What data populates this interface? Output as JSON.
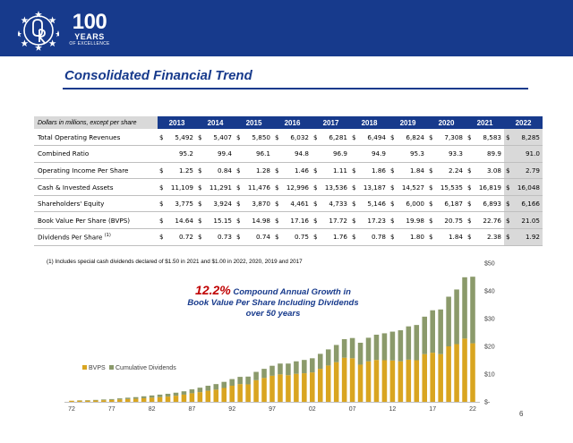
{
  "header": {
    "logo_number": "100",
    "logo_years": "YEARS",
    "logo_tagline": "OF EXCELLENCE",
    "band_color": "#173a8c"
  },
  "page_title": "Consolidated Financial Trend",
  "table": {
    "corner_label": "Dollars in millions, except per share",
    "years": [
      "2013",
      "2014",
      "2015",
      "2016",
      "2017",
      "2018",
      "2019",
      "2020",
      "2021",
      "2022"
    ],
    "rows": [
      {
        "label": "Total Operating Revenues",
        "note": "",
        "dollar": true,
        "values": [
          "5,492",
          "5,407",
          "5,850",
          "6,032",
          "6,281",
          "6,494",
          "6,824",
          "7,308",
          "8,583",
          "8,285"
        ]
      },
      {
        "label": "Combined Ratio",
        "note": "",
        "dollar": false,
        "values": [
          "95.2",
          "99.4",
          "96.1",
          "94.8",
          "96.9",
          "94.9",
          "95.3",
          "93.3",
          "89.9",
          "91.0"
        ]
      },
      {
        "label": "Operating Income Per Share",
        "note": "",
        "dollar": true,
        "values": [
          "1.25",
          "0.84",
          "1.28",
          "1.46",
          "1.11",
          "1.86",
          "1.84",
          "2.24",
          "3.08",
          "2.79"
        ]
      },
      {
        "label": "Cash & Invested Assets",
        "note": "",
        "dollar": true,
        "values": [
          "11,109",
          "11,291",
          "11,476",
          "12,996",
          "13,536",
          "13,187",
          "14,527",
          "15,535",
          "16,819",
          "16,048"
        ]
      },
      {
        "label": "Shareholders' Equity",
        "note": "",
        "dollar": true,
        "values": [
          "3,775",
          "3,924",
          "3,870",
          "4,461",
          "4,733",
          "5,146",
          "6,000",
          "6,187",
          "6,893",
          "6,166"
        ]
      },
      {
        "label": "Book Value Per Share (BVPS)",
        "note": "",
        "dollar": true,
        "values": [
          "14.64",
          "15.15",
          "14.98",
          "17.16",
          "17.72",
          "17.23",
          "19.98",
          "20.75",
          "22.76",
          "21.05"
        ]
      },
      {
        "label": "Dividends Per Share",
        "note": "(1)",
        "dollar": true,
        "values": [
          "0.72",
          "0.73",
          "0.74",
          "0.75",
          "1.76",
          "0.78",
          "1.80",
          "1.84",
          "2.38",
          "1.92"
        ]
      }
    ]
  },
  "footnote": "(1) Includes special cash dividends declared of $1.50 in 2021 and $1.00 in 2022, 2020, 2019 and 2017",
  "callout": {
    "percent": "12.2%",
    "line1": "Compound Annual Growth in",
    "line2": "Book Value Per Share Including Dividends",
    "line3": "over 50 years"
  },
  "chart_data": {
    "type": "bar",
    "stacked": true,
    "title": "",
    "xlabel": "",
    "ylabel": "",
    "ylim": [
      0,
      50
    ],
    "y_ticks": [
      "$-",
      "$10",
      "$20",
      "$30",
      "$40",
      "$50"
    ],
    "y_tick_values": [
      0,
      10,
      20,
      30,
      40,
      50
    ],
    "x_tick_labels": [
      "72",
      "77",
      "82",
      "87",
      "92",
      "97",
      "02",
      "07",
      "12",
      "17",
      "22"
    ],
    "x_tick_years": [
      1972,
      1977,
      1982,
      1987,
      1992,
      1997,
      2002,
      2007,
      2012,
      2017,
      2022
    ],
    "legend_position": "bottom-left",
    "grid": false,
    "x": [
      1972,
      1973,
      1974,
      1975,
      1976,
      1977,
      1978,
      1979,
      1980,
      1981,
      1982,
      1983,
      1984,
      1985,
      1986,
      1987,
      1988,
      1989,
      1990,
      1991,
      1992,
      1993,
      1994,
      1995,
      1996,
      1997,
      1998,
      1999,
      2000,
      2001,
      2002,
      2003,
      2004,
      2005,
      2006,
      2007,
      2008,
      2009,
      2010,
      2011,
      2012,
      2013,
      2014,
      2015,
      2016,
      2017,
      2018,
      2019,
      2020,
      2021,
      2022
    ],
    "series": [
      {
        "name": "BVPS",
        "color": "#d9a520",
        "values": [
          0.4,
          0.45,
          0.45,
          0.5,
          0.6,
          0.7,
          0.85,
          1.0,
          1.1,
          1.3,
          1.5,
          1.7,
          1.9,
          2.2,
          2.6,
          3.1,
          3.5,
          4.0,
          4.4,
          5.0,
          5.8,
          6.4,
          6.3,
          7.8,
          8.6,
          9.4,
          9.9,
          9.6,
          10.1,
          10.3,
          10.6,
          11.9,
          13.1,
          14.3,
          15.9,
          15.7,
          13.4,
          14.6,
          15.1,
          15.0,
          14.9,
          14.6,
          15.2,
          15.0,
          17.2,
          17.7,
          17.2,
          20.0,
          20.8,
          22.8,
          21.1
        ]
      },
      {
        "name": "Cumulative Dividends",
        "color": "#8b9a6b",
        "values": [
          0.0,
          0.1,
          0.15,
          0.2,
          0.25,
          0.3,
          0.4,
          0.5,
          0.6,
          0.7,
          0.8,
          0.9,
          1.0,
          1.1,
          1.2,
          1.4,
          1.6,
          1.8,
          2.0,
          2.2,
          2.4,
          2.6,
          2.8,
          3.0,
          3.3,
          3.6,
          3.9,
          4.2,
          4.5,
          4.8,
          5.1,
          5.4,
          5.8,
          6.2,
          6.7,
          7.3,
          7.9,
          8.5,
          9.1,
          9.7,
          10.4,
          11.2,
          12.0,
          12.7,
          13.5,
          15.3,
          16.1,
          17.9,
          19.7,
          22.1,
          24.0
        ]
      }
    ]
  },
  "page_number": "6"
}
